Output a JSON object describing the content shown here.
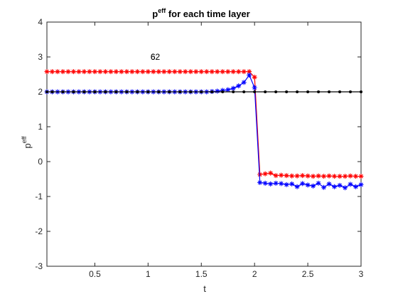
{
  "chart_data": {
    "type": "line",
    "title": {
      "base": "p",
      "sup": "eff",
      "rest": " for each time layer"
    },
    "xlabel": "t",
    "ylabel": {
      "base": "p",
      "sup": "eff"
    },
    "xlim": [
      0.05,
      3.0
    ],
    "ylim": [
      -3,
      4
    ],
    "xticks": [
      0.5,
      1,
      1.5,
      2,
      2.5,
      3
    ],
    "xtick_labels": [
      "0.5",
      "1",
      "1.5",
      "2",
      "2.5",
      "3"
    ],
    "yticks": [
      -3,
      -2,
      -1,
      0,
      1,
      2,
      3,
      4
    ],
    "ytick_labels": [
      "-3",
      "-2",
      "-1",
      "0",
      "1",
      "2",
      "3",
      "4"
    ],
    "grid": false,
    "annotation": {
      "text": "62",
      "overlap_text": "6",
      "x": 1.03,
      "y": 3.0
    },
    "series": [
      {
        "color": "#ff0000",
        "marker": "asterisk",
        "x": [
          0.05,
          0.1,
          0.15,
          0.2,
          0.25,
          0.3,
          0.35,
          0.4,
          0.45,
          0.5,
          0.55,
          0.6,
          0.65,
          0.7,
          0.75,
          0.8,
          0.85,
          0.9,
          0.95,
          1.0,
          1.05,
          1.1,
          1.15,
          1.2,
          1.25,
          1.3,
          1.35,
          1.4,
          1.45,
          1.5,
          1.55,
          1.6,
          1.65,
          1.7,
          1.75,
          1.8,
          1.85,
          1.9,
          1.95,
          2.0,
          2.05,
          2.1,
          2.15,
          2.2,
          2.25,
          2.3,
          2.35,
          2.4,
          2.45,
          2.5,
          2.55,
          2.6,
          2.65,
          2.7,
          2.75,
          2.8,
          2.85,
          2.9,
          2.95,
          3.0
        ],
        "y": [
          2.58,
          2.58,
          2.58,
          2.58,
          2.58,
          2.58,
          2.58,
          2.58,
          2.58,
          2.58,
          2.58,
          2.58,
          2.58,
          2.58,
          2.58,
          2.58,
          2.58,
          2.58,
          2.58,
          2.58,
          2.58,
          2.58,
          2.58,
          2.58,
          2.58,
          2.58,
          2.58,
          2.58,
          2.58,
          2.58,
          2.58,
          2.58,
          2.58,
          2.58,
          2.58,
          2.58,
          2.58,
          2.58,
          2.58,
          2.42,
          -0.37,
          -0.35,
          -0.33,
          -0.4,
          -0.39,
          -0.4,
          -0.41,
          -0.41,
          -0.4,
          -0.41,
          -0.42,
          -0.41,
          -0.42,
          -0.41,
          -0.42,
          -0.42,
          -0.42,
          -0.41,
          -0.42,
          -0.42
        ]
      },
      {
        "color": "#0000ff",
        "marker": "asterisk",
        "x": [
          0.05,
          0.1,
          0.15,
          0.2,
          0.25,
          0.3,
          0.35,
          0.4,
          0.45,
          0.5,
          0.55,
          0.6,
          0.65,
          0.7,
          0.75,
          0.8,
          0.85,
          0.9,
          0.95,
          1.0,
          1.05,
          1.1,
          1.15,
          1.2,
          1.25,
          1.3,
          1.35,
          1.4,
          1.45,
          1.5,
          1.55,
          1.6,
          1.65,
          1.7,
          1.75,
          1.8,
          1.85,
          1.9,
          1.95,
          2.0,
          2.05,
          2.1,
          2.15,
          2.2,
          2.25,
          2.3,
          2.35,
          2.4,
          2.45,
          2.5,
          2.55,
          2.6,
          2.65,
          2.7,
          2.75,
          2.8,
          2.85,
          2.9,
          2.95,
          3.0
        ],
        "y": [
          2.0,
          2.0,
          2.0,
          2.0,
          2.0,
          2.0,
          2.0,
          2.0,
          2.0,
          2.0,
          2.0,
          2.0,
          2.0,
          2.0,
          2.0,
          2.0,
          2.0,
          2.0,
          2.0,
          2.0,
          2.0,
          2.0,
          2.0,
          2.0,
          2.0,
          2.0,
          2.0,
          2.0,
          2.0,
          2.0,
          2.0,
          2.01,
          2.02,
          2.04,
          2.06,
          2.1,
          2.17,
          2.27,
          2.48,
          2.12,
          -0.6,
          -0.62,
          -0.64,
          -0.62,
          -0.63,
          -0.66,
          -0.64,
          -0.72,
          -0.63,
          -0.67,
          -0.7,
          -0.62,
          -0.74,
          -0.64,
          -0.72,
          -0.68,
          -0.75,
          -0.65,
          -0.72,
          -0.66
        ]
      },
      {
        "color": "#000000",
        "marker": "dot",
        "x": [
          0.05,
          0.1,
          0.2,
          0.3,
          0.4,
          0.5,
          0.6,
          0.7,
          0.8,
          0.9,
          1.0,
          1.1,
          1.2,
          1.3,
          1.4,
          1.5,
          1.6,
          1.7,
          1.8,
          1.9,
          2.0,
          2.1,
          2.2,
          2.3,
          2.4,
          2.5,
          2.6,
          2.7,
          2.8,
          2.9,
          3.0
        ],
        "y": [
          2,
          2,
          2,
          2,
          2,
          2,
          2,
          2,
          2,
          2,
          2,
          2,
          2,
          2,
          2,
          2,
          2,
          2,
          2,
          2,
          2,
          2,
          2,
          2,
          2,
          2,
          2,
          2,
          2,
          2,
          2
        ]
      }
    ]
  }
}
